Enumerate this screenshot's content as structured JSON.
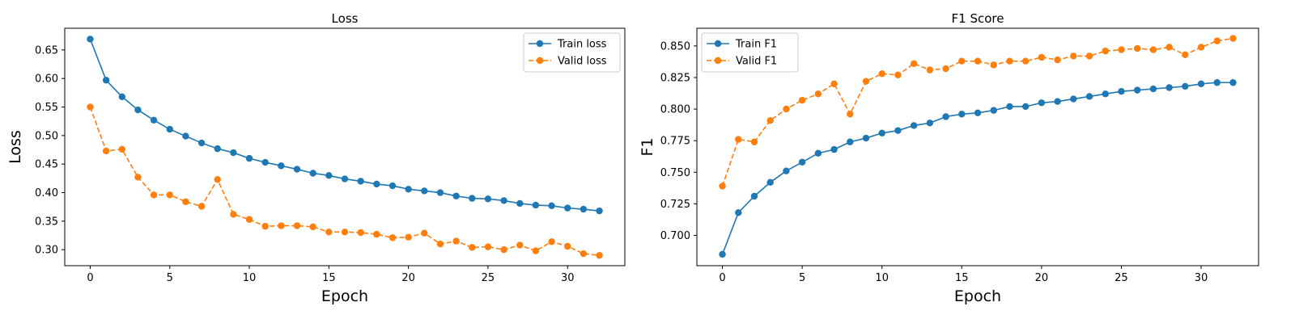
{
  "chart_data": [
    {
      "type": "line",
      "title": "Loss",
      "xlabel": "Epoch",
      "ylabel": "Loss",
      "xlim": [
        -1.6,
        33.6
      ],
      "ylim": [
        0.272,
        0.688
      ],
      "xticks": [
        0,
        5,
        10,
        15,
        20,
        25,
        30
      ],
      "yticks": [
        0.3,
        0.35,
        0.4,
        0.45,
        0.5,
        0.55,
        0.6,
        0.65
      ],
      "ytick_labels": [
        "0.30",
        "0.35",
        "0.40",
        "0.45",
        "0.50",
        "0.55",
        "0.60",
        "0.65"
      ],
      "grid": false,
      "legend_position": "top-right",
      "x": [
        0,
        1,
        2,
        3,
        4,
        5,
        6,
        7,
        8,
        9,
        10,
        11,
        12,
        13,
        14,
        15,
        16,
        17,
        18,
        19,
        20,
        21,
        22,
        23,
        24,
        25,
        26,
        27,
        28,
        29,
        30,
        31,
        32
      ],
      "series": [
        {
          "name": "Train loss",
          "color": "#1f77b4",
          "linestyle": "solid",
          "values": [
            0.669,
            0.597,
            0.568,
            0.545,
            0.527,
            0.511,
            0.499,
            0.487,
            0.477,
            0.47,
            0.46,
            0.453,
            0.447,
            0.441,
            0.434,
            0.43,
            0.424,
            0.42,
            0.415,
            0.412,
            0.406,
            0.403,
            0.4,
            0.394,
            0.39,
            0.389,
            0.386,
            0.381,
            0.378,
            0.377,
            0.373,
            0.371,
            0.368
          ]
        },
        {
          "name": "Valid loss",
          "color": "#ff7f0e",
          "linestyle": "dashed",
          "values": [
            0.55,
            0.473,
            0.476,
            0.427,
            0.396,
            0.396,
            0.384,
            0.376,
            0.423,
            0.362,
            0.353,
            0.341,
            0.342,
            0.342,
            0.34,
            0.331,
            0.331,
            0.33,
            0.327,
            0.321,
            0.322,
            0.329,
            0.31,
            0.315,
            0.304,
            0.305,
            0.3,
            0.308,
            0.298,
            0.314,
            0.306,
            0.293,
            0.29
          ]
        }
      ]
    },
    {
      "type": "line",
      "title": "F1 Score",
      "xlabel": "Epoch",
      "ylabel": "F1",
      "xlim": [
        -1.6,
        33.6
      ],
      "ylim": [
        0.676,
        0.864
      ],
      "xticks": [
        0,
        5,
        10,
        15,
        20,
        25,
        30
      ],
      "yticks": [
        0.7,
        0.725,
        0.75,
        0.775,
        0.8,
        0.825,
        0.85
      ],
      "ytick_labels": [
        "0.700",
        "0.725",
        "0.750",
        "0.775",
        "0.800",
        "0.825",
        "0.850"
      ],
      "grid": false,
      "legend_position": "top-left",
      "x": [
        0,
        1,
        2,
        3,
        4,
        5,
        6,
        7,
        8,
        9,
        10,
        11,
        12,
        13,
        14,
        15,
        16,
        17,
        18,
        19,
        20,
        21,
        22,
        23,
        24,
        25,
        26,
        27,
        28,
        29,
        30,
        31,
        32
      ],
      "series": [
        {
          "name": "Train F1",
          "color": "#1f77b4",
          "linestyle": "solid",
          "values": [
            0.685,
            0.718,
            0.731,
            0.742,
            0.751,
            0.758,
            0.765,
            0.768,
            0.774,
            0.777,
            0.781,
            0.783,
            0.787,
            0.789,
            0.794,
            0.796,
            0.797,
            0.799,
            0.802,
            0.802,
            0.805,
            0.806,
            0.808,
            0.81,
            0.812,
            0.814,
            0.815,
            0.816,
            0.817,
            0.818,
            0.82,
            0.821,
            0.821
          ]
        },
        {
          "name": "Valid F1",
          "color": "#ff7f0e",
          "linestyle": "dashed",
          "values": [
            0.739,
            0.776,
            0.774,
            0.791,
            0.8,
            0.807,
            0.812,
            0.82,
            0.796,
            0.822,
            0.828,
            0.827,
            0.836,
            0.831,
            0.832,
            0.838,
            0.838,
            0.835,
            0.838,
            0.838,
            0.841,
            0.839,
            0.842,
            0.842,
            0.846,
            0.847,
            0.848,
            0.847,
            0.849,
            0.843,
            0.849,
            0.854,
            0.856
          ]
        }
      ]
    }
  ]
}
